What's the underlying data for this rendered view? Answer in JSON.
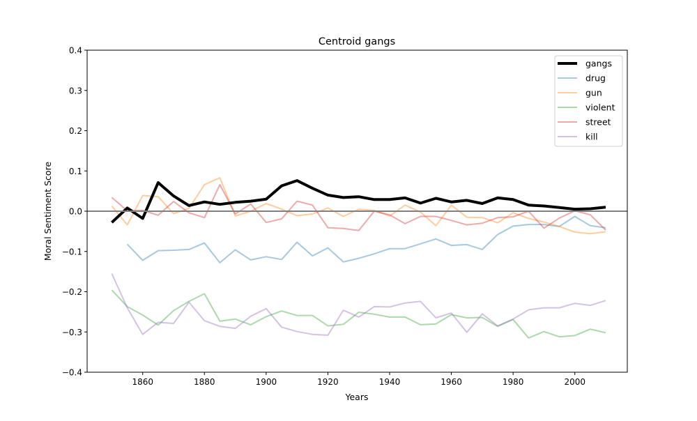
{
  "chart_data": {
    "type": "line",
    "title": "Centroid gangs",
    "xlabel": "Years",
    "ylabel": "Moral Sentiment Score",
    "xlim": [
      1842,
      2017
    ],
    "ylim": [
      -0.4,
      0.4
    ],
    "xticks": [
      1860,
      1880,
      1900,
      1920,
      1940,
      1960,
      1980,
      2000
    ],
    "yticks": [
      -0.4,
      -0.3,
      -0.2,
      -0.1,
      0.0,
      0.1,
      0.2,
      0.3,
      0.4
    ],
    "ytick_labels": [
      "−0.4",
      "−0.3",
      "−0.2",
      "−0.1",
      "0.0",
      "0.1",
      "0.2",
      "0.3",
      "0.4"
    ],
    "xtick_labels": [
      "1860",
      "1880",
      "1900",
      "1920",
      "1940",
      "1960",
      "1980",
      "2000"
    ],
    "reference_line": {
      "y": 0.0,
      "color": "#808080"
    },
    "grid": false,
    "legend_position": "top-right",
    "series": [
      {
        "name": "gangs",
        "color": "#000000",
        "emphasis": true,
        "x": [
          1850,
          1855,
          1860,
          1865,
          1870,
          1875,
          1880,
          1885,
          1890,
          1895,
          1900,
          1905,
          1910,
          1915,
          1920,
          1925,
          1930,
          1935,
          1940,
          1945,
          1950,
          1955,
          1960,
          1965,
          1970,
          1975,
          1980,
          1985,
          1990,
          1995,
          2000,
          2005,
          2010
        ],
        "values": [
          -0.028,
          0.008,
          -0.018,
          0.071,
          0.038,
          0.014,
          0.023,
          0.017,
          0.022,
          0.025,
          0.03,
          0.063,
          0.076,
          0.057,
          0.04,
          0.034,
          0.036,
          0.029,
          0.029,
          0.033,
          0.02,
          0.032,
          0.023,
          0.027,
          0.019,
          0.033,
          0.029,
          0.015,
          0.013,
          0.009,
          0.005,
          0.006,
          0.01
        ]
      },
      {
        "name": "drug",
        "color": "#1f77b4",
        "x": [
          1855,
          1860,
          1865,
          1870,
          1875,
          1880,
          1885,
          1890,
          1895,
          1900,
          1905,
          1910,
          1915,
          1920,
          1925,
          1930,
          1935,
          1940,
          1945,
          1950,
          1955,
          1960,
          1965,
          1970,
          1975,
          1980,
          1985,
          1990,
          1995,
          2000,
          2005,
          2010
        ],
        "values": [
          -0.082,
          -0.122,
          -0.098,
          -0.097,
          -0.095,
          -0.079,
          -0.128,
          -0.096,
          -0.121,
          -0.113,
          -0.12,
          -0.077,
          -0.111,
          -0.091,
          -0.126,
          -0.117,
          -0.106,
          -0.093,
          -0.093,
          -0.081,
          -0.069,
          -0.085,
          -0.083,
          -0.095,
          -0.058,
          -0.037,
          -0.033,
          -0.033,
          -0.038,
          -0.013,
          -0.036,
          -0.041
        ]
      },
      {
        "name": "gun",
        "color": "#ff7f0e",
        "x": [
          1850,
          1855,
          1860,
          1865,
          1870,
          1875,
          1880,
          1885,
          1890,
          1895,
          1900,
          1905,
          1910,
          1915,
          1920,
          1925,
          1930,
          1935,
          1940,
          1945,
          1950,
          1955,
          1960,
          1965,
          1970,
          1975,
          1980,
          1985,
          1990,
          1995,
          2000,
          2005,
          2010
        ],
        "values": [
          0.013,
          -0.034,
          0.039,
          0.036,
          -0.006,
          0.007,
          0.066,
          0.083,
          -0.012,
          0.0,
          0.019,
          0.005,
          -0.011,
          -0.007,
          0.008,
          -0.013,
          0.005,
          0.002,
          -0.012,
          0.015,
          -0.002,
          -0.036,
          0.015,
          -0.015,
          -0.016,
          -0.029,
          -0.004,
          -0.018,
          -0.027,
          -0.038,
          -0.052,
          -0.056,
          -0.051
        ]
      },
      {
        "name": "violent",
        "color": "#2ca02c",
        "x": [
          1850,
          1855,
          1860,
          1865,
          1870,
          1875,
          1880,
          1885,
          1890,
          1895,
          1900,
          1905,
          1910,
          1915,
          1920,
          1925,
          1930,
          1935,
          1940,
          1945,
          1950,
          1955,
          1960,
          1965,
          1970,
          1975,
          1980,
          1985,
          1990,
          1995,
          2000,
          2005,
          2010
        ],
        "values": [
          -0.196,
          -0.237,
          -0.258,
          -0.283,
          -0.247,
          -0.224,
          -0.205,
          -0.273,
          -0.268,
          -0.282,
          -0.262,
          -0.248,
          -0.259,
          -0.259,
          -0.285,
          -0.281,
          -0.251,
          -0.256,
          -0.263,
          -0.263,
          -0.282,
          -0.28,
          -0.257,
          -0.265,
          -0.264,
          -0.286,
          -0.269,
          -0.315,
          -0.299,
          -0.312,
          -0.309,
          -0.293,
          -0.302
        ]
      },
      {
        "name": "street",
        "color": "#d62728",
        "x": [
          1850,
          1855,
          1860,
          1865,
          1870,
          1875,
          1880,
          1885,
          1890,
          1895,
          1900,
          1905,
          1910,
          1915,
          1920,
          1925,
          1930,
          1935,
          1940,
          1945,
          1950,
          1955,
          1960,
          1965,
          1970,
          1975,
          1980,
          1985,
          1990,
          1995,
          2000,
          2005,
          2010
        ],
        "values": [
          0.034,
          0.001,
          0.002,
          -0.01,
          0.024,
          -0.004,
          -0.016,
          0.066,
          -0.007,
          0.018,
          -0.028,
          -0.019,
          0.025,
          0.015,
          -0.041,
          -0.043,
          -0.048,
          0.0,
          -0.009,
          -0.031,
          -0.013,
          -0.013,
          -0.023,
          -0.034,
          -0.03,
          -0.016,
          -0.014,
          0.0,
          -0.042,
          -0.017,
          0.001,
          -0.009,
          -0.047
        ]
      },
      {
        "name": "kill",
        "color": "#9467bd",
        "x": [
          1850,
          1855,
          1860,
          1865,
          1870,
          1875,
          1880,
          1885,
          1890,
          1895,
          1900,
          1905,
          1910,
          1915,
          1920,
          1925,
          1930,
          1935,
          1940,
          1945,
          1950,
          1955,
          1960,
          1965,
          1970,
          1975,
          1980,
          1985,
          1990,
          1995,
          2000,
          2005,
          2010
        ],
        "values": [
          -0.155,
          -0.24,
          -0.306,
          -0.276,
          -0.279,
          -0.226,
          -0.272,
          -0.286,
          -0.291,
          -0.261,
          -0.242,
          -0.288,
          -0.299,
          -0.306,
          -0.308,
          -0.246,
          -0.263,
          -0.237,
          -0.238,
          -0.228,
          -0.224,
          -0.265,
          -0.253,
          -0.301,
          -0.255,
          -0.285,
          -0.268,
          -0.245,
          -0.24,
          -0.24,
          -0.229,
          -0.234,
          -0.222
        ]
      }
    ]
  }
}
